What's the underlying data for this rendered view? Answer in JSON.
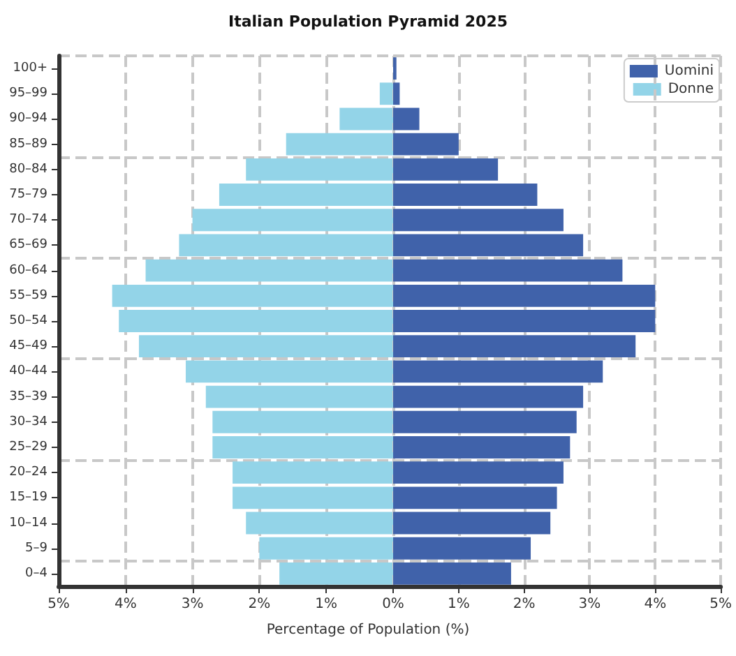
{
  "chart_data": [
    {
      "type": "bar",
      "orientation": "horizontal",
      "title": "Italian Population Pyramid 2025",
      "xlabel": "Percentage of Population (%)",
      "categories": [
        "100+",
        "95–99",
        "90–94",
        "85–89",
        "80–84",
        "75–79",
        "70–74",
        "65–69",
        "60–64",
        "55–59",
        "50–54",
        "45–49",
        "40–44",
        "35–39",
        "30–34",
        "25–29",
        "20–24",
        "15–19",
        "10–14",
        "5–9",
        "0–4"
      ],
      "series": [
        {
          "name": "Donne",
          "color": "#93d4e8",
          "values": [
            0,
            0.2,
            0.8,
            1.6,
            2.2,
            2.6,
            3.0,
            3.2,
            3.7,
            4.2,
            4.1,
            3.8,
            3.1,
            2.8,
            2.7,
            2.7,
            2.4,
            2.4,
            2.2,
            2.0,
            1.7
          ]
        }
      ],
      "xlim": [
        5,
        0
      ],
      "xticks": [
        {
          "value": 5,
          "label": "5%"
        },
        {
          "value": 4,
          "label": "4%"
        },
        {
          "value": 3,
          "label": "3%"
        },
        {
          "value": 2,
          "label": "2%"
        },
        {
          "value": 1,
          "label": "1%"
        },
        {
          "value": 0,
          "label": "0%"
        }
      ],
      "grid": true,
      "legend": "top right"
    },
    {
      "type": "bar",
      "orientation": "horizontal",
      "series": [
        {
          "name": "Uomini",
          "color": "#4062aa",
          "values": [
            0.05,
            0.1,
            0.4,
            1.0,
            1.6,
            2.2,
            2.6,
            2.9,
            3.5,
            4.0,
            4.0,
            3.7,
            3.2,
            2.9,
            2.8,
            2.7,
            2.6,
            2.5,
            2.4,
            2.1,
            1.8
          ]
        }
      ],
      "xlim": [
        0,
        5
      ],
      "xticks": [
        {
          "value": 0,
          "label": null
        },
        {
          "value": 1,
          "label": "1%"
        },
        {
          "value": 2,
          "label": "2%"
        },
        {
          "value": 3,
          "label": "3%"
        },
        {
          "value": 4,
          "label": "4%"
        },
        {
          "value": 5,
          "label": "5%"
        }
      ],
      "tick_labels": "x",
      "grid": true,
      "legend": "top right"
    }
  ]
}
